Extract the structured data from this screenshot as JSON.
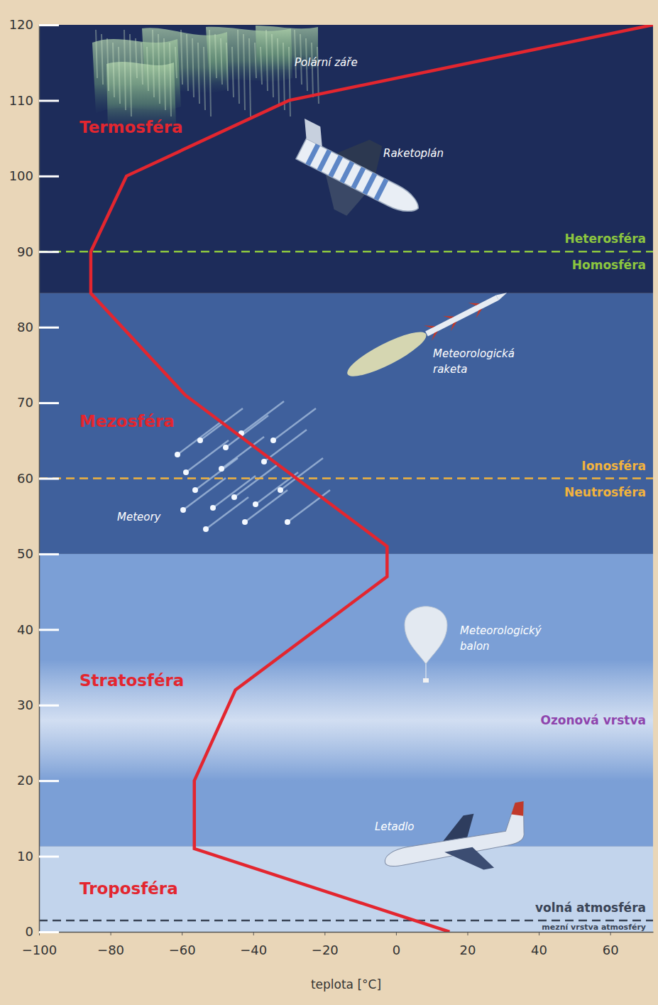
{
  "chart_data": {
    "type": "line",
    "x": [
      15,
      -56.5,
      -56.5,
      -45,
      -2.5,
      -2.5,
      -59,
      -85.5,
      -85.5,
      -75.5,
      -30,
      72
    ],
    "series": [
      {
        "color": "#e3262f",
        "values": [
          0,
          11,
          20,
          32,
          47,
          51,
          71,
          84.5,
          90,
          100,
          110,
          120
        ]
      }
    ],
    "xlabel": "teplota [°C]",
    "xlim": [
      -100,
      72
    ],
    "xticks": [
      -100,
      -80,
      -60,
      -40,
      -20,
      0,
      20,
      40,
      60
    ],
    "ylim": [
      0,
      120
    ],
    "yticks": [
      0,
      10,
      20,
      30,
      40,
      50,
      60,
      70,
      80,
      90,
      100,
      110,
      120
    ],
    "layers": [
      {
        "name": "Troposféra",
        "bottom": 0,
        "top": 11.3,
        "color": "#c2d4ec"
      },
      {
        "name": "Stratosféra",
        "bottom": 11.3,
        "top": 50,
        "color": "#7b9fd6"
      },
      {
        "name": "Mezosféra",
        "bottom": 50,
        "top": 84.5,
        "color": "#3f609c"
      },
      {
        "name": "Termosféra",
        "bottom": 84.5,
        "top": 120,
        "color": "#1d2c5a"
      }
    ],
    "boundaries": [
      {
        "value": 90,
        "above": "Heterosféra",
        "below": "Homosféra",
        "color": "#8cc63f"
      },
      {
        "value": 60,
        "above": "Ionosféra",
        "below": "Neutrosféra",
        "color": "#f2b33d"
      },
      {
        "value": 1.5,
        "above": "volná atmosféra",
        "below": "mezní vrstva atmosféry",
        "color": "#3a4456"
      }
    ],
    "ozone": {
      "label": "Ozonová vrstva",
      "bottom": 20,
      "top": 36,
      "color": "#8e44ad"
    },
    "annotations": [
      "Polární záře",
      "Raketoplán",
      "Meteorologická raketa",
      "Meteory",
      "Meteorologický balon",
      "Letadlo"
    ]
  }
}
